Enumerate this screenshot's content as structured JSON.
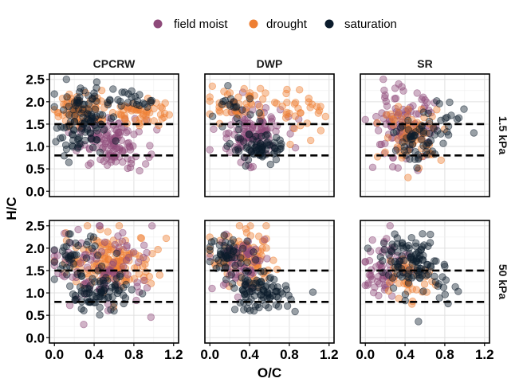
{
  "chart_data": {
    "type": "scatter",
    "xlabel": "O/C",
    "ylabel": "H/C",
    "xlim": [
      -0.05,
      1.25
    ],
    "ylim": [
      -0.12,
      2.62
    ],
    "x_ticks": [
      "0.0",
      "0.4",
      "0.8",
      "1.2"
    ],
    "x_tick_values": [
      0.0,
      0.4,
      0.8,
      1.2
    ],
    "y_ticks": [
      "0.0",
      "0.5",
      "1.0",
      "1.5",
      "2.0",
      "2.5"
    ],
    "y_tick_values": [
      0.0,
      0.5,
      1.0,
      1.5,
      2.0,
      2.5
    ],
    "col_facets": [
      "CPCRW",
      "DWP",
      "SR"
    ],
    "row_facets": [
      "1.5 kPa",
      "50 kPa"
    ],
    "reference_lines_y": [
      1.5,
      0.8
    ],
    "legend": {
      "position": "top",
      "entries": [
        {
          "name": "field moist",
          "color": "#8e4a7a"
        },
        {
          "name": "drought",
          "color": "#ee7f33"
        },
        {
          "name": "saturation",
          "color": "#0c1c2c"
        }
      ]
    },
    "series_colors": {
      "field moist": "#8e4a7a",
      "drought": "#ee7f33",
      "saturation": "#0c1c2c"
    },
    "panels": [
      {
        "row": 0,
        "col": 0,
        "clusters": [
          {
            "series": "field moist",
            "cx": 0.58,
            "cy": 1.05,
            "sx": 0.17,
            "sy": 0.28,
            "n": 120
          },
          {
            "series": "drought",
            "cx": 0.28,
            "cy": 1.85,
            "sx": 0.14,
            "sy": 0.2,
            "n": 70
          },
          {
            "series": "drought",
            "cx": 0.85,
            "cy": 1.78,
            "sx": 0.13,
            "sy": 0.16,
            "n": 50
          },
          {
            "series": "saturation",
            "cx": 0.28,
            "cy": 1.55,
            "sx": 0.13,
            "sy": 0.38,
            "n": 110
          },
          {
            "series": "saturation",
            "cx": 0.8,
            "cy": 2.05,
            "sx": 0.17,
            "sy": 0.14,
            "n": 25
          }
        ]
      },
      {
        "row": 0,
        "col": 1,
        "clusters": [
          {
            "series": "field moist",
            "cx": 0.4,
            "cy": 1.32,
            "sx": 0.17,
            "sy": 0.3,
            "n": 110
          },
          {
            "series": "drought",
            "cx": 0.28,
            "cy": 1.95,
            "sx": 0.15,
            "sy": 0.18,
            "n": 45
          },
          {
            "series": "drought",
            "cx": 0.95,
            "cy": 1.8,
            "sx": 0.12,
            "sy": 0.25,
            "n": 30
          },
          {
            "series": "saturation",
            "cx": 0.5,
            "cy": 0.95,
            "sx": 0.14,
            "sy": 0.15,
            "n": 70
          },
          {
            "series": "saturation",
            "cx": 0.25,
            "cy": 1.8,
            "sx": 0.12,
            "sy": 0.2,
            "n": 20
          }
        ]
      },
      {
        "row": 0,
        "col": 2,
        "clusters": [
          {
            "series": "field moist",
            "cx": 0.35,
            "cy": 1.5,
            "sx": 0.17,
            "sy": 0.4,
            "n": 100
          },
          {
            "series": "drought",
            "cx": 0.48,
            "cy": 1.3,
            "sx": 0.15,
            "sy": 0.3,
            "n": 70
          },
          {
            "series": "saturation",
            "cx": 0.55,
            "cy": 1.05,
            "sx": 0.14,
            "sy": 0.3,
            "n": 50
          },
          {
            "series": "saturation",
            "cx": 0.78,
            "cy": 1.7,
            "sx": 0.16,
            "sy": 0.22,
            "n": 20
          }
        ]
      },
      {
        "row": 1,
        "col": 0,
        "clusters": [
          {
            "series": "drought",
            "cx": 0.58,
            "cy": 1.7,
            "sx": 0.22,
            "sy": 0.3,
            "n": 150
          },
          {
            "series": "field moist",
            "cx": 0.5,
            "cy": 1.55,
            "sx": 0.26,
            "sy": 0.45,
            "n": 90
          },
          {
            "series": "saturation",
            "cx": 0.45,
            "cy": 1.0,
            "sx": 0.16,
            "sy": 0.2,
            "n": 80
          },
          {
            "series": "saturation",
            "cx": 0.2,
            "cy": 1.8,
            "sx": 0.12,
            "sy": 0.25,
            "n": 40
          }
        ]
      },
      {
        "row": 1,
        "col": 1,
        "clusters": [
          {
            "series": "drought",
            "cx": 0.35,
            "cy": 1.75,
            "sx": 0.18,
            "sy": 0.3,
            "n": 90
          },
          {
            "series": "field moist",
            "cx": 0.3,
            "cy": 1.7,
            "sx": 0.13,
            "sy": 0.35,
            "n": 60
          },
          {
            "series": "saturation",
            "cx": 0.5,
            "cy": 1.0,
            "sx": 0.15,
            "sy": 0.2,
            "n": 90
          },
          {
            "series": "saturation",
            "cx": 0.2,
            "cy": 1.85,
            "sx": 0.12,
            "sy": 0.2,
            "n": 50
          }
        ]
      },
      {
        "row": 1,
        "col": 2,
        "clusters": [
          {
            "series": "field moist",
            "cx": 0.2,
            "cy": 1.6,
            "sx": 0.12,
            "sy": 0.35,
            "n": 60
          },
          {
            "series": "drought",
            "cx": 0.45,
            "cy": 1.35,
            "sx": 0.12,
            "sy": 0.3,
            "n": 40
          },
          {
            "series": "saturation",
            "cx": 0.45,
            "cy": 1.7,
            "sx": 0.14,
            "sy": 0.25,
            "n": 90
          },
          {
            "series": "saturation",
            "cx": 0.7,
            "cy": 1.2,
            "sx": 0.2,
            "sy": 0.35,
            "n": 25
          }
        ]
      }
    ]
  }
}
